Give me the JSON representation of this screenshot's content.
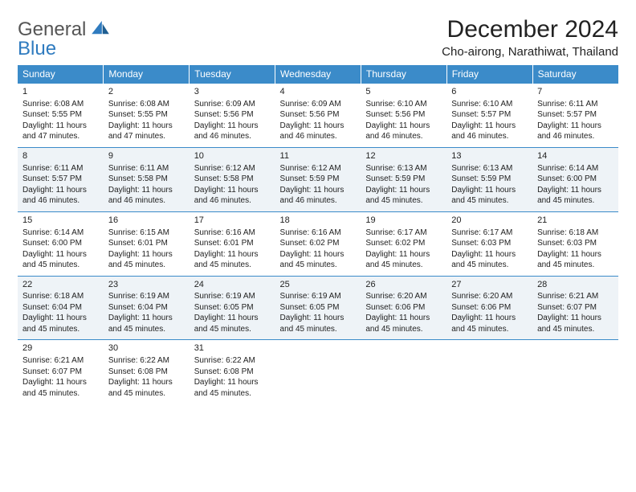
{
  "logo": {
    "line1": "General",
    "line2": "Blue"
  },
  "title": "December 2024",
  "location": "Cho-airong, Narathiwat, Thailand",
  "colors": {
    "header_bg": "#3b8bc9",
    "header_text": "#ffffff",
    "shaded_row_bg": "#eef3f7",
    "text": "#222222",
    "logo_gray": "#555555",
    "logo_blue": "#2f7bbf"
  },
  "fonts": {
    "title_size_pt": 30,
    "location_size_pt": 15,
    "dayhead_size_pt": 12,
    "cell_size_pt": 10
  },
  "day_headers": [
    "Sunday",
    "Monday",
    "Tuesday",
    "Wednesday",
    "Thursday",
    "Friday",
    "Saturday"
  ],
  "weeks": [
    {
      "shaded": false,
      "days": [
        {
          "n": "1",
          "sunrise": "Sunrise: 6:08 AM",
          "sunset": "Sunset: 5:55 PM",
          "daylight": "Daylight: 11 hours and 47 minutes."
        },
        {
          "n": "2",
          "sunrise": "Sunrise: 6:08 AM",
          "sunset": "Sunset: 5:55 PM",
          "daylight": "Daylight: 11 hours and 47 minutes."
        },
        {
          "n": "3",
          "sunrise": "Sunrise: 6:09 AM",
          "sunset": "Sunset: 5:56 PM",
          "daylight": "Daylight: 11 hours and 46 minutes."
        },
        {
          "n": "4",
          "sunrise": "Sunrise: 6:09 AM",
          "sunset": "Sunset: 5:56 PM",
          "daylight": "Daylight: 11 hours and 46 minutes."
        },
        {
          "n": "5",
          "sunrise": "Sunrise: 6:10 AM",
          "sunset": "Sunset: 5:56 PM",
          "daylight": "Daylight: 11 hours and 46 minutes."
        },
        {
          "n": "6",
          "sunrise": "Sunrise: 6:10 AM",
          "sunset": "Sunset: 5:57 PM",
          "daylight": "Daylight: 11 hours and 46 minutes."
        },
        {
          "n": "7",
          "sunrise": "Sunrise: 6:11 AM",
          "sunset": "Sunset: 5:57 PM",
          "daylight": "Daylight: 11 hours and 46 minutes."
        }
      ]
    },
    {
      "shaded": true,
      "days": [
        {
          "n": "8",
          "sunrise": "Sunrise: 6:11 AM",
          "sunset": "Sunset: 5:57 PM",
          "daylight": "Daylight: 11 hours and 46 minutes."
        },
        {
          "n": "9",
          "sunrise": "Sunrise: 6:11 AM",
          "sunset": "Sunset: 5:58 PM",
          "daylight": "Daylight: 11 hours and 46 minutes."
        },
        {
          "n": "10",
          "sunrise": "Sunrise: 6:12 AM",
          "sunset": "Sunset: 5:58 PM",
          "daylight": "Daylight: 11 hours and 46 minutes."
        },
        {
          "n": "11",
          "sunrise": "Sunrise: 6:12 AM",
          "sunset": "Sunset: 5:59 PM",
          "daylight": "Daylight: 11 hours and 46 minutes."
        },
        {
          "n": "12",
          "sunrise": "Sunrise: 6:13 AM",
          "sunset": "Sunset: 5:59 PM",
          "daylight": "Daylight: 11 hours and 45 minutes."
        },
        {
          "n": "13",
          "sunrise": "Sunrise: 6:13 AM",
          "sunset": "Sunset: 5:59 PM",
          "daylight": "Daylight: 11 hours and 45 minutes."
        },
        {
          "n": "14",
          "sunrise": "Sunrise: 6:14 AM",
          "sunset": "Sunset: 6:00 PM",
          "daylight": "Daylight: 11 hours and 45 minutes."
        }
      ]
    },
    {
      "shaded": false,
      "days": [
        {
          "n": "15",
          "sunrise": "Sunrise: 6:14 AM",
          "sunset": "Sunset: 6:00 PM",
          "daylight": "Daylight: 11 hours and 45 minutes."
        },
        {
          "n": "16",
          "sunrise": "Sunrise: 6:15 AM",
          "sunset": "Sunset: 6:01 PM",
          "daylight": "Daylight: 11 hours and 45 minutes."
        },
        {
          "n": "17",
          "sunrise": "Sunrise: 6:16 AM",
          "sunset": "Sunset: 6:01 PM",
          "daylight": "Daylight: 11 hours and 45 minutes."
        },
        {
          "n": "18",
          "sunrise": "Sunrise: 6:16 AM",
          "sunset": "Sunset: 6:02 PM",
          "daylight": "Daylight: 11 hours and 45 minutes."
        },
        {
          "n": "19",
          "sunrise": "Sunrise: 6:17 AM",
          "sunset": "Sunset: 6:02 PM",
          "daylight": "Daylight: 11 hours and 45 minutes."
        },
        {
          "n": "20",
          "sunrise": "Sunrise: 6:17 AM",
          "sunset": "Sunset: 6:03 PM",
          "daylight": "Daylight: 11 hours and 45 minutes."
        },
        {
          "n": "21",
          "sunrise": "Sunrise: 6:18 AM",
          "sunset": "Sunset: 6:03 PM",
          "daylight": "Daylight: 11 hours and 45 minutes."
        }
      ]
    },
    {
      "shaded": true,
      "days": [
        {
          "n": "22",
          "sunrise": "Sunrise: 6:18 AM",
          "sunset": "Sunset: 6:04 PM",
          "daylight": "Daylight: 11 hours and 45 minutes."
        },
        {
          "n": "23",
          "sunrise": "Sunrise: 6:19 AM",
          "sunset": "Sunset: 6:04 PM",
          "daylight": "Daylight: 11 hours and 45 minutes."
        },
        {
          "n": "24",
          "sunrise": "Sunrise: 6:19 AM",
          "sunset": "Sunset: 6:05 PM",
          "daylight": "Daylight: 11 hours and 45 minutes."
        },
        {
          "n": "25",
          "sunrise": "Sunrise: 6:19 AM",
          "sunset": "Sunset: 6:05 PM",
          "daylight": "Daylight: 11 hours and 45 minutes."
        },
        {
          "n": "26",
          "sunrise": "Sunrise: 6:20 AM",
          "sunset": "Sunset: 6:06 PM",
          "daylight": "Daylight: 11 hours and 45 minutes."
        },
        {
          "n": "27",
          "sunrise": "Sunrise: 6:20 AM",
          "sunset": "Sunset: 6:06 PM",
          "daylight": "Daylight: 11 hours and 45 minutes."
        },
        {
          "n": "28",
          "sunrise": "Sunrise: 6:21 AM",
          "sunset": "Sunset: 6:07 PM",
          "daylight": "Daylight: 11 hours and 45 minutes."
        }
      ]
    },
    {
      "shaded": false,
      "days": [
        {
          "n": "29",
          "sunrise": "Sunrise: 6:21 AM",
          "sunset": "Sunset: 6:07 PM",
          "daylight": "Daylight: 11 hours and 45 minutes."
        },
        {
          "n": "30",
          "sunrise": "Sunrise: 6:22 AM",
          "sunset": "Sunset: 6:08 PM",
          "daylight": "Daylight: 11 hours and 45 minutes."
        },
        {
          "n": "31",
          "sunrise": "Sunrise: 6:22 AM",
          "sunset": "Sunset: 6:08 PM",
          "daylight": "Daylight: 11 hours and 45 minutes."
        },
        null,
        null,
        null,
        null
      ]
    }
  ]
}
